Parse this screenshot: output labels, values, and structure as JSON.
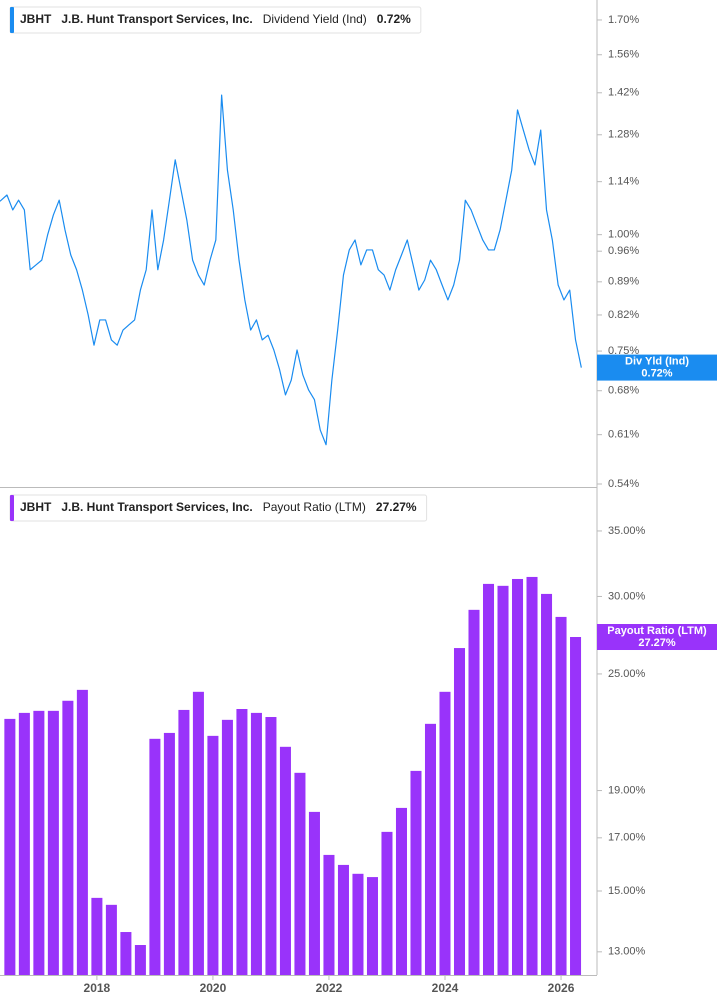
{
  "chart_data": [
    {
      "type": "line",
      "ticker": "JBHT",
      "company": "J.B. Hunt Transport Services, Inc.",
      "log_scale": true,
      "xlim": [
        2016.33,
        2026.62
      ],
      "ylim": [
        0.536,
        1.786
      ],
      "yticks": [
        {
          "value": 1.7,
          "label": "1.70%"
        },
        {
          "value": 1.56,
          "label": "1.56%"
        },
        {
          "value": 1.42,
          "label": "1.42%"
        },
        {
          "value": 1.28,
          "label": "1.28%"
        },
        {
          "value": 1.14,
          "label": "1.14%"
        },
        {
          "value": 1.0,
          "label": "1.00%"
        },
        {
          "value": 0.96,
          "label": "0.96%"
        },
        {
          "value": 0.89,
          "label": "0.89%"
        },
        {
          "value": 0.82,
          "label": "0.82%"
        },
        {
          "value": 0.75,
          "label": "0.75%"
        },
        {
          "value": 0.68,
          "label": "0.68%"
        },
        {
          "value": 0.61,
          "label": "0.61%"
        },
        {
          "value": 0.54,
          "label": "0.54%"
        }
      ],
      "x": [
        2016.25,
        2016.35,
        2016.45,
        2016.55,
        2016.65,
        2016.75,
        2016.85,
        2016.95,
        2017.05,
        2017.15,
        2017.25,
        2017.35,
        2017.45,
        2017.55,
        2017.65,
        2017.75,
        2017.85,
        2017.95,
        2018.05,
        2018.15,
        2018.25,
        2018.35,
        2018.45,
        2018.55,
        2018.65,
        2018.75,
        2018.85,
        2018.95,
        2019.05,
        2019.15,
        2019.25,
        2019.35,
        2019.45,
        2019.55,
        2019.65,
        2019.75,
        2019.85,
        2019.95,
        2020.05,
        2020.15,
        2020.25,
        2020.35,
        2020.45,
        2020.55,
        2020.65,
        2020.75,
        2020.85,
        2020.95,
        2021.05,
        2021.15,
        2021.25,
        2021.35,
        2021.45,
        2021.55,
        2021.65,
        2021.75,
        2021.85,
        2021.95,
        2022.05,
        2022.15,
        2022.25,
        2022.35,
        2022.45,
        2022.55,
        2022.65,
        2022.75,
        2022.85,
        2022.95,
        2023.05,
        2023.15,
        2023.25,
        2023.35,
        2023.45,
        2023.55,
        2023.65,
        2023.75,
        2023.85,
        2023.95,
        2024.05,
        2024.15,
        2024.25,
        2024.35,
        2024.45,
        2024.55,
        2024.65,
        2024.75,
        2024.85,
        2024.95,
        2025.05,
        2025.15,
        2025.25,
        2025.35,
        2025.45,
        2025.55,
        2025.65,
        2025.75,
        2025.85,
        2025.95,
        2026.05,
        2026.15,
        2026.25,
        2026.35
      ],
      "series": [
        {
          "name": "Dividend Yield (Ind)",
          "tag": "Div Yld (Ind)",
          "current": "0.72%",
          "color": "#1a8cf0",
          "values": [
            1.076,
            1.089,
            1.103,
            1.063,
            1.089,
            1.063,
            0.917,
            0.928,
            0.939,
            0.999,
            1.05,
            1.089,
            1.012,
            0.951,
            0.917,
            0.872,
            0.82,
            0.761,
            0.81,
            0.81,
            0.771,
            0.761,
            0.79,
            0.8,
            0.81,
            0.872,
            0.917,
            1.063,
            0.917,
            0.987,
            1.089,
            1.203,
            1.117,
            1.037,
            0.939,
            0.905,
            0.883,
            0.939,
            0.987,
            1.412,
            1.173,
            1.063,
            0.939,
            0.851,
            0.79,
            0.81,
            0.771,
            0.78,
            0.752,
            0.716,
            0.673,
            0.698,
            0.752,
            0.707,
            0.681,
            0.665,
            0.617,
            0.595,
            0.698,
            0.79,
            0.905,
            0.963,
            0.987,
            0.928,
            0.963,
            0.963,
            0.917,
            0.905,
            0.872,
            0.917,
            0.951,
            0.987,
            0.928,
            0.872,
            0.894,
            0.939,
            0.917,
            0.883,
            0.851,
            0.883,
            0.939,
            1.089,
            1.063,
            1.024,
            0.987,
            0.963,
            0.963,
            1.012,
            1.089,
            1.173,
            1.361,
            1.295,
            1.233,
            1.188,
            1.295,
            1.063,
            0.987,
            0.883,
            0.851,
            0.872,
            0.771,
            0.72
          ]
        }
      ]
    },
    {
      "type": "bar",
      "ticker": "JBHT",
      "company": "J.B. Hunt Transport Services, Inc.",
      "log_scale": true,
      "xlim": [
        2016.33,
        2026.62
      ],
      "ylim": [
        12.31,
        38.09
      ],
      "xticks": [
        2018,
        2020,
        2022,
        2024,
        2026
      ],
      "yticks": [
        {
          "value": 35,
          "label": "35.00%"
        },
        {
          "value": 30,
          "label": "30.00%"
        },
        {
          "value": 25,
          "label": "25.00%"
        },
        {
          "value": 19,
          "label": "19.00%"
        },
        {
          "value": 17,
          "label": "17.00%"
        },
        {
          "value": 15,
          "label": "15.00%"
        },
        {
          "value": 13,
          "label": "13.00%"
        }
      ],
      "x": [
        2016.5,
        2016.75,
        2017,
        2017.25,
        2017.5,
        2017.75,
        2018,
        2018.25,
        2018.5,
        2018.75,
        2019,
        2019.25,
        2019.5,
        2019.75,
        2020,
        2020.25,
        2020.5,
        2020.75,
        2021,
        2021.25,
        2021.5,
        2021.75,
        2022,
        2022.25,
        2022.5,
        2022.75,
        2023,
        2023.25,
        2023.5,
        2023.75,
        2024,
        2024.25,
        2024.5,
        2024.75,
        2025,
        2025.25,
        2025.5,
        2025.75,
        2026,
        2026.25
      ],
      "series": [
        {
          "name": "Payout Ratio (LTM)",
          "tag": "Payout Ratio (LTM)",
          "current": "27.27%",
          "color": "#9933fa",
          "values": [
            22.49,
            22.81,
            22.92,
            22.92,
            23.47,
            24.08,
            14.76,
            14.52,
            13.62,
            13.21,
            21.46,
            21.76,
            22.97,
            23.97,
            21.61,
            22.44,
            23.02,
            22.81,
            22.59,
            21.06,
            19.81,
            18.07,
            16.33,
            15.95,
            15.62,
            15.5,
            17.24,
            18.24,
            19.9,
            22.23,
            23.97,
            26.57,
            29.07,
            30.9,
            30.76,
            31.26,
            31.41,
            30.18,
            28.59,
            27.27
          ]
        }
      ]
    }
  ]
}
